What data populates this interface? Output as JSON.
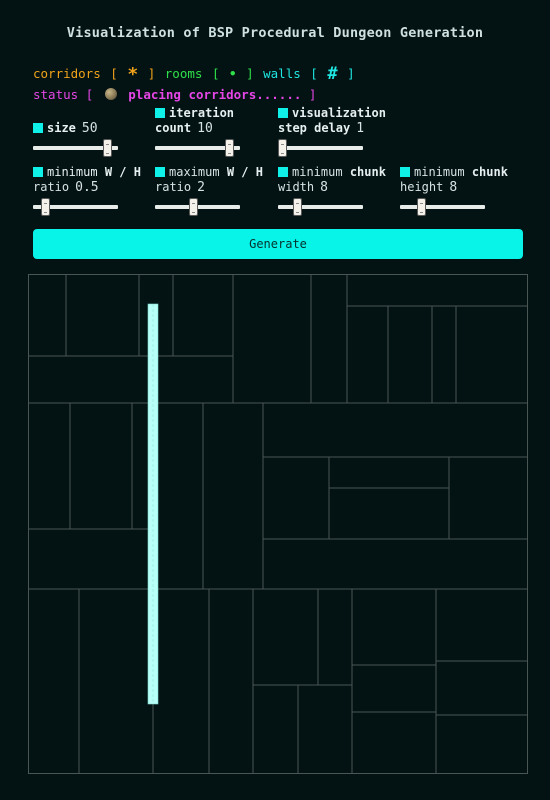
{
  "title": "Visualization of BSP Procedural Dungeon Generation",
  "legend": {
    "corridors_label": "corridors",
    "corridors_symbol": "*",
    "rooms_label": "rooms",
    "rooms_symbol": "•",
    "walls_label": "walls",
    "walls_symbol": "#",
    "open_bracket": "[",
    "close_bracket": "]"
  },
  "status": {
    "label": "status",
    "open_bracket": "[",
    "close_bracket": "]",
    "message": "placing corridors......",
    "icon": "moon-icon"
  },
  "controls": {
    "size": {
      "label": "size",
      "value": "50",
      "fraction": 0.92
    },
    "iteration": {
      "label_line1": "iteration",
      "label_line2": "count",
      "value": "10",
      "fraction": 0.92
    },
    "delay": {
      "label_line1": "visualization",
      "label_line2": "step delay",
      "value": "1",
      "fraction": 0.0
    },
    "min_ratio": {
      "label_line1_a": "minimum",
      "label_line1_b": "W / H",
      "label_line2": "ratio",
      "value": "0.5",
      "fraction": 0.1
    },
    "max_ratio": {
      "label_line1_a": "maximum",
      "label_line1_b": "W / H",
      "label_line2": "ratio",
      "value": "2",
      "fraction": 0.45
    },
    "min_width": {
      "label_line1_a": "minimum",
      "label_line1_b": "chunk",
      "label_line2": "width",
      "value": "8",
      "fraction": 0.2
    },
    "min_height": {
      "label_line1_a": "minimum",
      "label_line1_b": "chunk",
      "label_line2": "height",
      "value": "8",
      "fraction": 0.22
    }
  },
  "generate_label": "Generate",
  "colors": {
    "background": "#031213",
    "accent": "#08f4e8",
    "corridor": "#b8fff8",
    "wall": "#4a5654",
    "status": "#e646e6"
  }
}
